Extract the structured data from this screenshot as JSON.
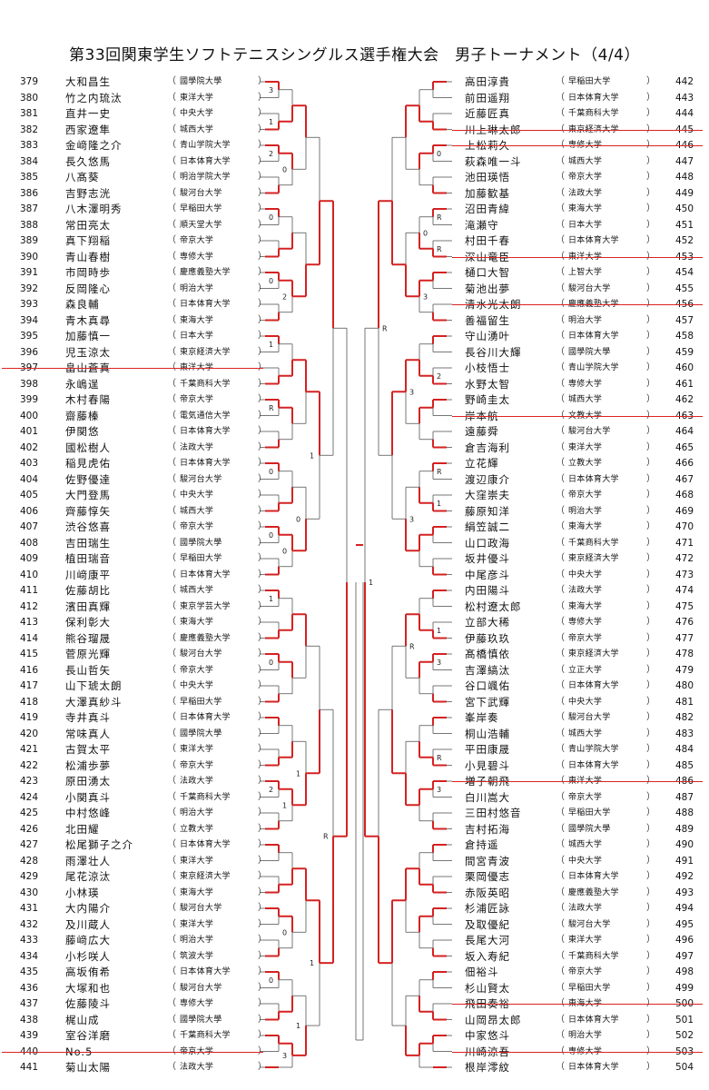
{
  "title": "第33回関東学生ソフトテニスシングルス選手権大会　男子トーナメント（4/4）",
  "colors": {
    "winner_line": "#d42222",
    "bracket_line": "#555555",
    "strike": "#dd2222"
  },
  "left_players": [
    {
      "no": "379",
      "name": "大和昌生",
      "school": "國學院大學"
    },
    {
      "no": "380",
      "name": "竹之内琉汰",
      "school": "東洋大学"
    },
    {
      "no": "381",
      "name": "直井一史",
      "school": "中央大学"
    },
    {
      "no": "382",
      "name": "西家遼隼",
      "school": "城西大学"
    },
    {
      "no": "383",
      "name": "金﨑隆之介",
      "school": "青山学院大学"
    },
    {
      "no": "384",
      "name": "長久悠馬",
      "school": "日本体育大学"
    },
    {
      "no": "385",
      "name": "八髙葵",
      "school": "明治学院大学"
    },
    {
      "no": "386",
      "name": "吉野志洸",
      "school": "駿河台大学"
    },
    {
      "no": "387",
      "name": "八木澤明秀",
      "school": "早稲田大学"
    },
    {
      "no": "388",
      "name": "常田亮太",
      "school": "順天堂大学"
    },
    {
      "no": "389",
      "name": "真下翔稲",
      "school": "帝京大学"
    },
    {
      "no": "390",
      "name": "青山春樹",
      "school": "専修大学"
    },
    {
      "no": "391",
      "name": "市岡時歩",
      "school": "慶應義塾大学"
    },
    {
      "no": "392",
      "name": "反岡隆心",
      "school": "明治大学"
    },
    {
      "no": "393",
      "name": "森良輔",
      "school": "日本体育大学"
    },
    {
      "no": "394",
      "name": "青木真尋",
      "school": "東海大学"
    },
    {
      "no": "395",
      "name": "加藤慎一",
      "school": "日本大学"
    },
    {
      "no": "396",
      "name": "児玉涼太",
      "school": "東京経済大学"
    },
    {
      "no": "397",
      "name": "畠山蒼真",
      "school": "東洋大学"
    },
    {
      "no": "398",
      "name": "永嶋逞",
      "school": "千葉商科大学"
    },
    {
      "no": "399",
      "name": "木村春陽",
      "school": "帝京大学"
    },
    {
      "no": "400",
      "name": "齋藤榛",
      "school": "電気通信大学"
    },
    {
      "no": "401",
      "name": "伊関悠",
      "school": "日本体育大学"
    },
    {
      "no": "402",
      "name": "國松樹人",
      "school": "法政大学"
    },
    {
      "no": "403",
      "name": "稲見虎佑",
      "school": "日本体育大学"
    },
    {
      "no": "404",
      "name": "佐野優達",
      "school": "駿河台大学"
    },
    {
      "no": "405",
      "name": "大門登馬",
      "school": "中央大学"
    },
    {
      "no": "406",
      "name": "齊藤惇矢",
      "school": "城西大学"
    },
    {
      "no": "407",
      "name": "渋谷悠喜",
      "school": "帝京大学"
    },
    {
      "no": "408",
      "name": "吉田瑞生",
      "school": "國學院大學"
    },
    {
      "no": "409",
      "name": "植田瑞音",
      "school": "早稲田大学"
    },
    {
      "no": "410",
      "name": "川﨑康平",
      "school": "日本体育大学"
    },
    {
      "no": "411",
      "name": "佐藤胡比",
      "school": "城西大学"
    },
    {
      "no": "412",
      "name": "濱田真輝",
      "school": "東京学芸大学"
    },
    {
      "no": "413",
      "name": "保利彰大",
      "school": "東海大学"
    },
    {
      "no": "414",
      "name": "熊谷瑠晟",
      "school": "慶應義塾大学"
    },
    {
      "no": "415",
      "name": "菅原光輝",
      "school": "駿河台大学"
    },
    {
      "no": "416",
      "name": "長山哲矢",
      "school": "帝京大学"
    },
    {
      "no": "417",
      "name": "山下琥太朗",
      "school": "中央大学"
    },
    {
      "no": "418",
      "name": "大澤真紗斗",
      "school": "早稲田大学"
    },
    {
      "no": "419",
      "name": "寺井真斗",
      "school": "日本体育大学"
    },
    {
      "no": "420",
      "name": "常味真人",
      "school": "國學院大學"
    },
    {
      "no": "421",
      "name": "古賀太平",
      "school": "東洋大学"
    },
    {
      "no": "422",
      "name": "松浦歩夢",
      "school": "帝京大学"
    },
    {
      "no": "423",
      "name": "原田湧太",
      "school": "法政大学"
    },
    {
      "no": "424",
      "name": "小関真斗",
      "school": "千葉商科大学"
    },
    {
      "no": "425",
      "name": "中村悠峰",
      "school": "明治大学"
    },
    {
      "no": "426",
      "name": "北田耀",
      "school": "立教大学"
    },
    {
      "no": "427",
      "name": "松尾獅子之介",
      "school": "日本体育大学"
    },
    {
      "no": "428",
      "name": "雨澤壮人",
      "school": "東洋大学"
    },
    {
      "no": "429",
      "name": "尾花涼汰",
      "school": "東京経済大学"
    },
    {
      "no": "430",
      "name": "小林瑛",
      "school": "東海大学"
    },
    {
      "no": "431",
      "name": "大内陽介",
      "school": "駿河台大学"
    },
    {
      "no": "432",
      "name": "及川蔵人",
      "school": "東洋大学"
    },
    {
      "no": "433",
      "name": "藤﨑広大",
      "school": "明治大学"
    },
    {
      "no": "434",
      "name": "小杉咲人",
      "school": "筑波大学"
    },
    {
      "no": "435",
      "name": "高坂侑希",
      "school": "日本体育大学"
    },
    {
      "no": "436",
      "name": "大塚和也",
      "school": "駿河台大学"
    },
    {
      "no": "437",
      "name": "佐藤陵斗",
      "school": "専修大学"
    },
    {
      "no": "438",
      "name": "梶山成",
      "school": "國學院大學"
    },
    {
      "no": "439",
      "name": "室谷洋磨",
      "school": "千葉商科大学"
    },
    {
      "no": "440",
      "name": "No.5",
      "school": "帝京大学"
    },
    {
      "no": "441",
      "name": "菊山太陽",
      "school": "法政大学"
    }
  ],
  "right_players": [
    {
      "no": "442",
      "name": "高田淳貴",
      "school": "早稲田大学"
    },
    {
      "no": "443",
      "name": "前田遥翔",
      "school": "日本体育大学"
    },
    {
      "no": "444",
      "name": "近藤匠真",
      "school": "千葉商科大学"
    },
    {
      "no": "445",
      "name": "川上琳太郎",
      "school": "東京経済大学"
    },
    {
      "no": "446",
      "name": "上松莉久",
      "school": "専修大学"
    },
    {
      "no": "447",
      "name": "萩森唯一斗",
      "school": "城西大学"
    },
    {
      "no": "448",
      "name": "池田瑛悟",
      "school": "帝京大学"
    },
    {
      "no": "449",
      "name": "加藤歓基",
      "school": "法政大学"
    },
    {
      "no": "450",
      "name": "沼田青緯",
      "school": "東海大学"
    },
    {
      "no": "451",
      "name": "滝瀬守",
      "school": "日本大学"
    },
    {
      "no": "452",
      "name": "村田千春",
      "school": "日本体育大学"
    },
    {
      "no": "453",
      "name": "深山竜臣",
      "school": "東洋大学"
    },
    {
      "no": "454",
      "name": "樋口大智",
      "school": "上智大学"
    },
    {
      "no": "455",
      "name": "菊池出夢",
      "school": "駿河台大学"
    },
    {
      "no": "456",
      "name": "清水光太朗",
      "school": "慶應義塾大学"
    },
    {
      "no": "457",
      "name": "善福留生",
      "school": "明治大学"
    },
    {
      "no": "458",
      "name": "守山湧叶",
      "school": "日本体育大学"
    },
    {
      "no": "459",
      "name": "長谷川大輝",
      "school": "國學院大學"
    },
    {
      "no": "460",
      "name": "小枝悟士",
      "school": "青山学院大学"
    },
    {
      "no": "461",
      "name": "水野太智",
      "school": "専修大学"
    },
    {
      "no": "462",
      "name": "野崎圭太",
      "school": "城西大学"
    },
    {
      "no": "463",
      "name": "岸本航",
      "school": "文教大学"
    },
    {
      "no": "464",
      "name": "遠藤舜",
      "school": "駿河台大学"
    },
    {
      "no": "465",
      "name": "倉吉海利",
      "school": "東洋大学"
    },
    {
      "no": "466",
      "name": "立花輝",
      "school": "立教大学"
    },
    {
      "no": "467",
      "name": "渡辺康介",
      "school": "日本体育大学"
    },
    {
      "no": "468",
      "name": "大窪崇夫",
      "school": "帝京大学"
    },
    {
      "no": "469",
      "name": "藤原知洋",
      "school": "明治大学"
    },
    {
      "no": "470",
      "name": "絹笠誠二",
      "school": "東海大学"
    },
    {
      "no": "471",
      "name": "山口政海",
      "school": "千葉商科大学"
    },
    {
      "no": "472",
      "name": "坂井優斗",
      "school": "東京経済大学"
    },
    {
      "no": "473",
      "name": "中尾彦斗",
      "school": "中央大学"
    },
    {
      "no": "474",
      "name": "内田陽斗",
      "school": "法政大学"
    },
    {
      "no": "475",
      "name": "松村遼太郎",
      "school": "東海大学"
    },
    {
      "no": "476",
      "name": "立部大稀",
      "school": "専修大学"
    },
    {
      "no": "477",
      "name": "伊藤玖玖",
      "school": "帝京大学"
    },
    {
      "no": "478",
      "name": "髙橋慎依",
      "school": "東京経済大学"
    },
    {
      "no": "479",
      "name": "吉澤縞汰",
      "school": "立正大学"
    },
    {
      "no": "480",
      "name": "谷口颯佑",
      "school": "日本体育大学"
    },
    {
      "no": "481",
      "name": "宮下武輝",
      "school": "中央大学"
    },
    {
      "no": "482",
      "name": "峯岸奏",
      "school": "駿河台大学"
    },
    {
      "no": "483",
      "name": "桐山浩輔",
      "school": "城西大学"
    },
    {
      "no": "484",
      "name": "平田康晟",
      "school": "青山学院大学"
    },
    {
      "no": "485",
      "name": "小見碧斗",
      "school": "日本体育大学"
    },
    {
      "no": "486",
      "name": "増子朝飛",
      "school": "東洋大学"
    },
    {
      "no": "487",
      "name": "白川嵩大",
      "school": "帝京大学"
    },
    {
      "no": "488",
      "name": "三田村悠音",
      "school": "早稲田大学"
    },
    {
      "no": "489",
      "name": "吉村拓海",
      "school": "國學院大學"
    },
    {
      "no": "490",
      "name": "倉持遥",
      "school": "城西大学"
    },
    {
      "no": "491",
      "name": "間宮青波",
      "school": "中央大学"
    },
    {
      "no": "492",
      "name": "栗岡優志",
      "school": "日本体育大学"
    },
    {
      "no": "493",
      "name": "赤阪英昭",
      "school": "慶應義塾大学"
    },
    {
      "no": "494",
      "name": "杉浦匠詠",
      "school": "法政大学"
    },
    {
      "no": "495",
      "name": "及取優紀",
      "school": "駿河台大学"
    },
    {
      "no": "496",
      "name": "長尾大河",
      "school": "東洋大学"
    },
    {
      "no": "497",
      "name": "坂入寿紀",
      "school": "千葉商科大学"
    },
    {
      "no": "498",
      "name": "佃裕斗",
      "school": "帝京大学"
    },
    {
      "no": "499",
      "name": "杉山賢太",
      "school": "早稲田大学"
    },
    {
      "no": "500",
      "name": "飛田奏裕",
      "school": "東海大学"
    },
    {
      "no": "501",
      "name": "山岡昂太郎",
      "school": "日本体育大学"
    },
    {
      "no": "502",
      "name": "中家悠斗",
      "school": "明治大学"
    },
    {
      "no": "503",
      "name": "川崎涼吾",
      "school": "専修大学"
    },
    {
      "no": "504",
      "name": "根岸澪紋",
      "school": "日本体育大学"
    }
  ],
  "left_strikes": [
    "397",
    "440"
  ],
  "right_strikes": [
    "445",
    "446",
    "453",
    "456",
    "463",
    "486",
    "500",
    "503"
  ],
  "paren": "（",
  "paren_close": "）",
  "scores": {
    "left_r1": [
      "3",
      "1",
      "2",
      "",
      "0",
      "",
      "0",
      "",
      "1",
      "",
      "R",
      "",
      "0",
      "",
      "0",
      "",
      "1",
      "",
      "0",
      "",
      "",
      "",
      "2",
      "",
      "",
      "",
      "",
      "",
      "0",
      "",
      "",
      "",
      "0",
      "",
      "2",
      "",
      "",
      "",
      "0",
      "",
      "",
      "",
      "1",
      "",
      "0",
      "",
      "3",
      "",
      "",
      "",
      "0",
      "",
      "1",
      "",
      "1",
      "",
      "1",
      "",
      "1",
      "",
      "R"
    ],
    "right_r1": [
      "",
      "",
      "0",
      "",
      "R",
      "R",
      "",
      "",
      "",
      "2",
      "",
      "",
      "R",
      "1",
      "",
      "",
      "",
      "1",
      "3",
      "",
      "",
      "R",
      "3",
      "",
      "",
      "",
      "",
      "",
      "",
      "",
      "",
      "",
      "",
      "0",
      "3",
      "",
      "",
      "",
      "",
      "",
      "",
      "",
      "",
      "",
      "",
      "",
      "",
      "",
      "",
      "3",
      "3",
      "R",
      "",
      "",
      "",
      "",
      "",
      "",
      "",
      "R",
      "",
      "1",
      "1",
      "R"
    ]
  }
}
